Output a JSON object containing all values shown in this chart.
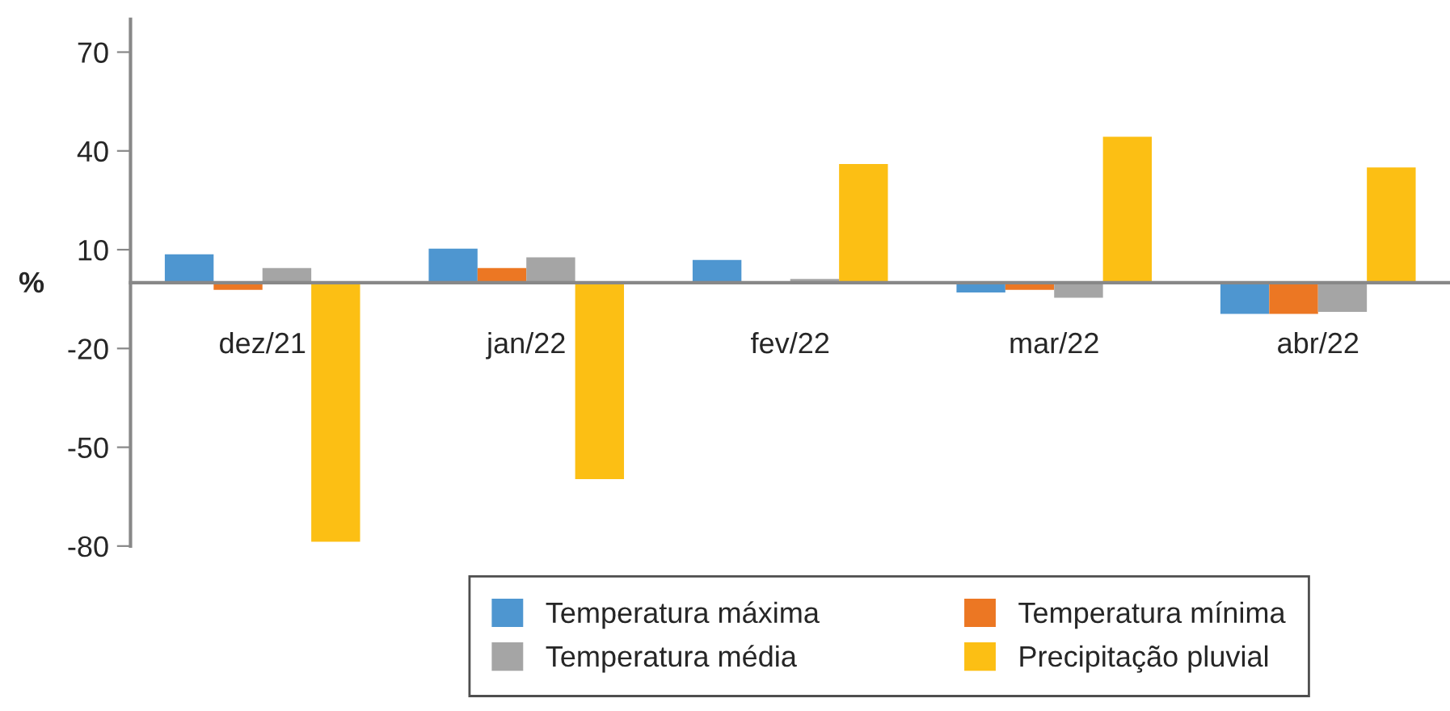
{
  "chart_data": {
    "type": "bar",
    "ylabel": "%",
    "categories": [
      "dez/21",
      "jan/22",
      "fev/22",
      "mar/22",
      "abr/22"
    ],
    "series": [
      {
        "name": "Temperatura máxima",
        "color": "#4e96d0",
        "values": [
          8.6,
          10.3,
          6.9,
          -3,
          -9.5
        ]
      },
      {
        "name": "Temperatura mínima",
        "color": "#ec7723",
        "values": [
          -2.2,
          4.4,
          0,
          -2.2,
          -9.5
        ]
      },
      {
        "name": "Temperatura média",
        "color": "#a5a5a5",
        "values": [
          4.4,
          7.7,
          1.1,
          -4.6,
          -8.9
        ]
      },
      {
        "name": "Precipitação pluvial",
        "color": "#fcbf14",
        "values": [
          -78.7,
          -59.7,
          36,
          44.3,
          35
        ]
      }
    ],
    "ylim": [
      -80,
      80
    ],
    "yticks": [
      -80,
      -50,
      -20,
      10,
      40,
      70
    ],
    "grid": false,
    "legend": "bottom"
  }
}
